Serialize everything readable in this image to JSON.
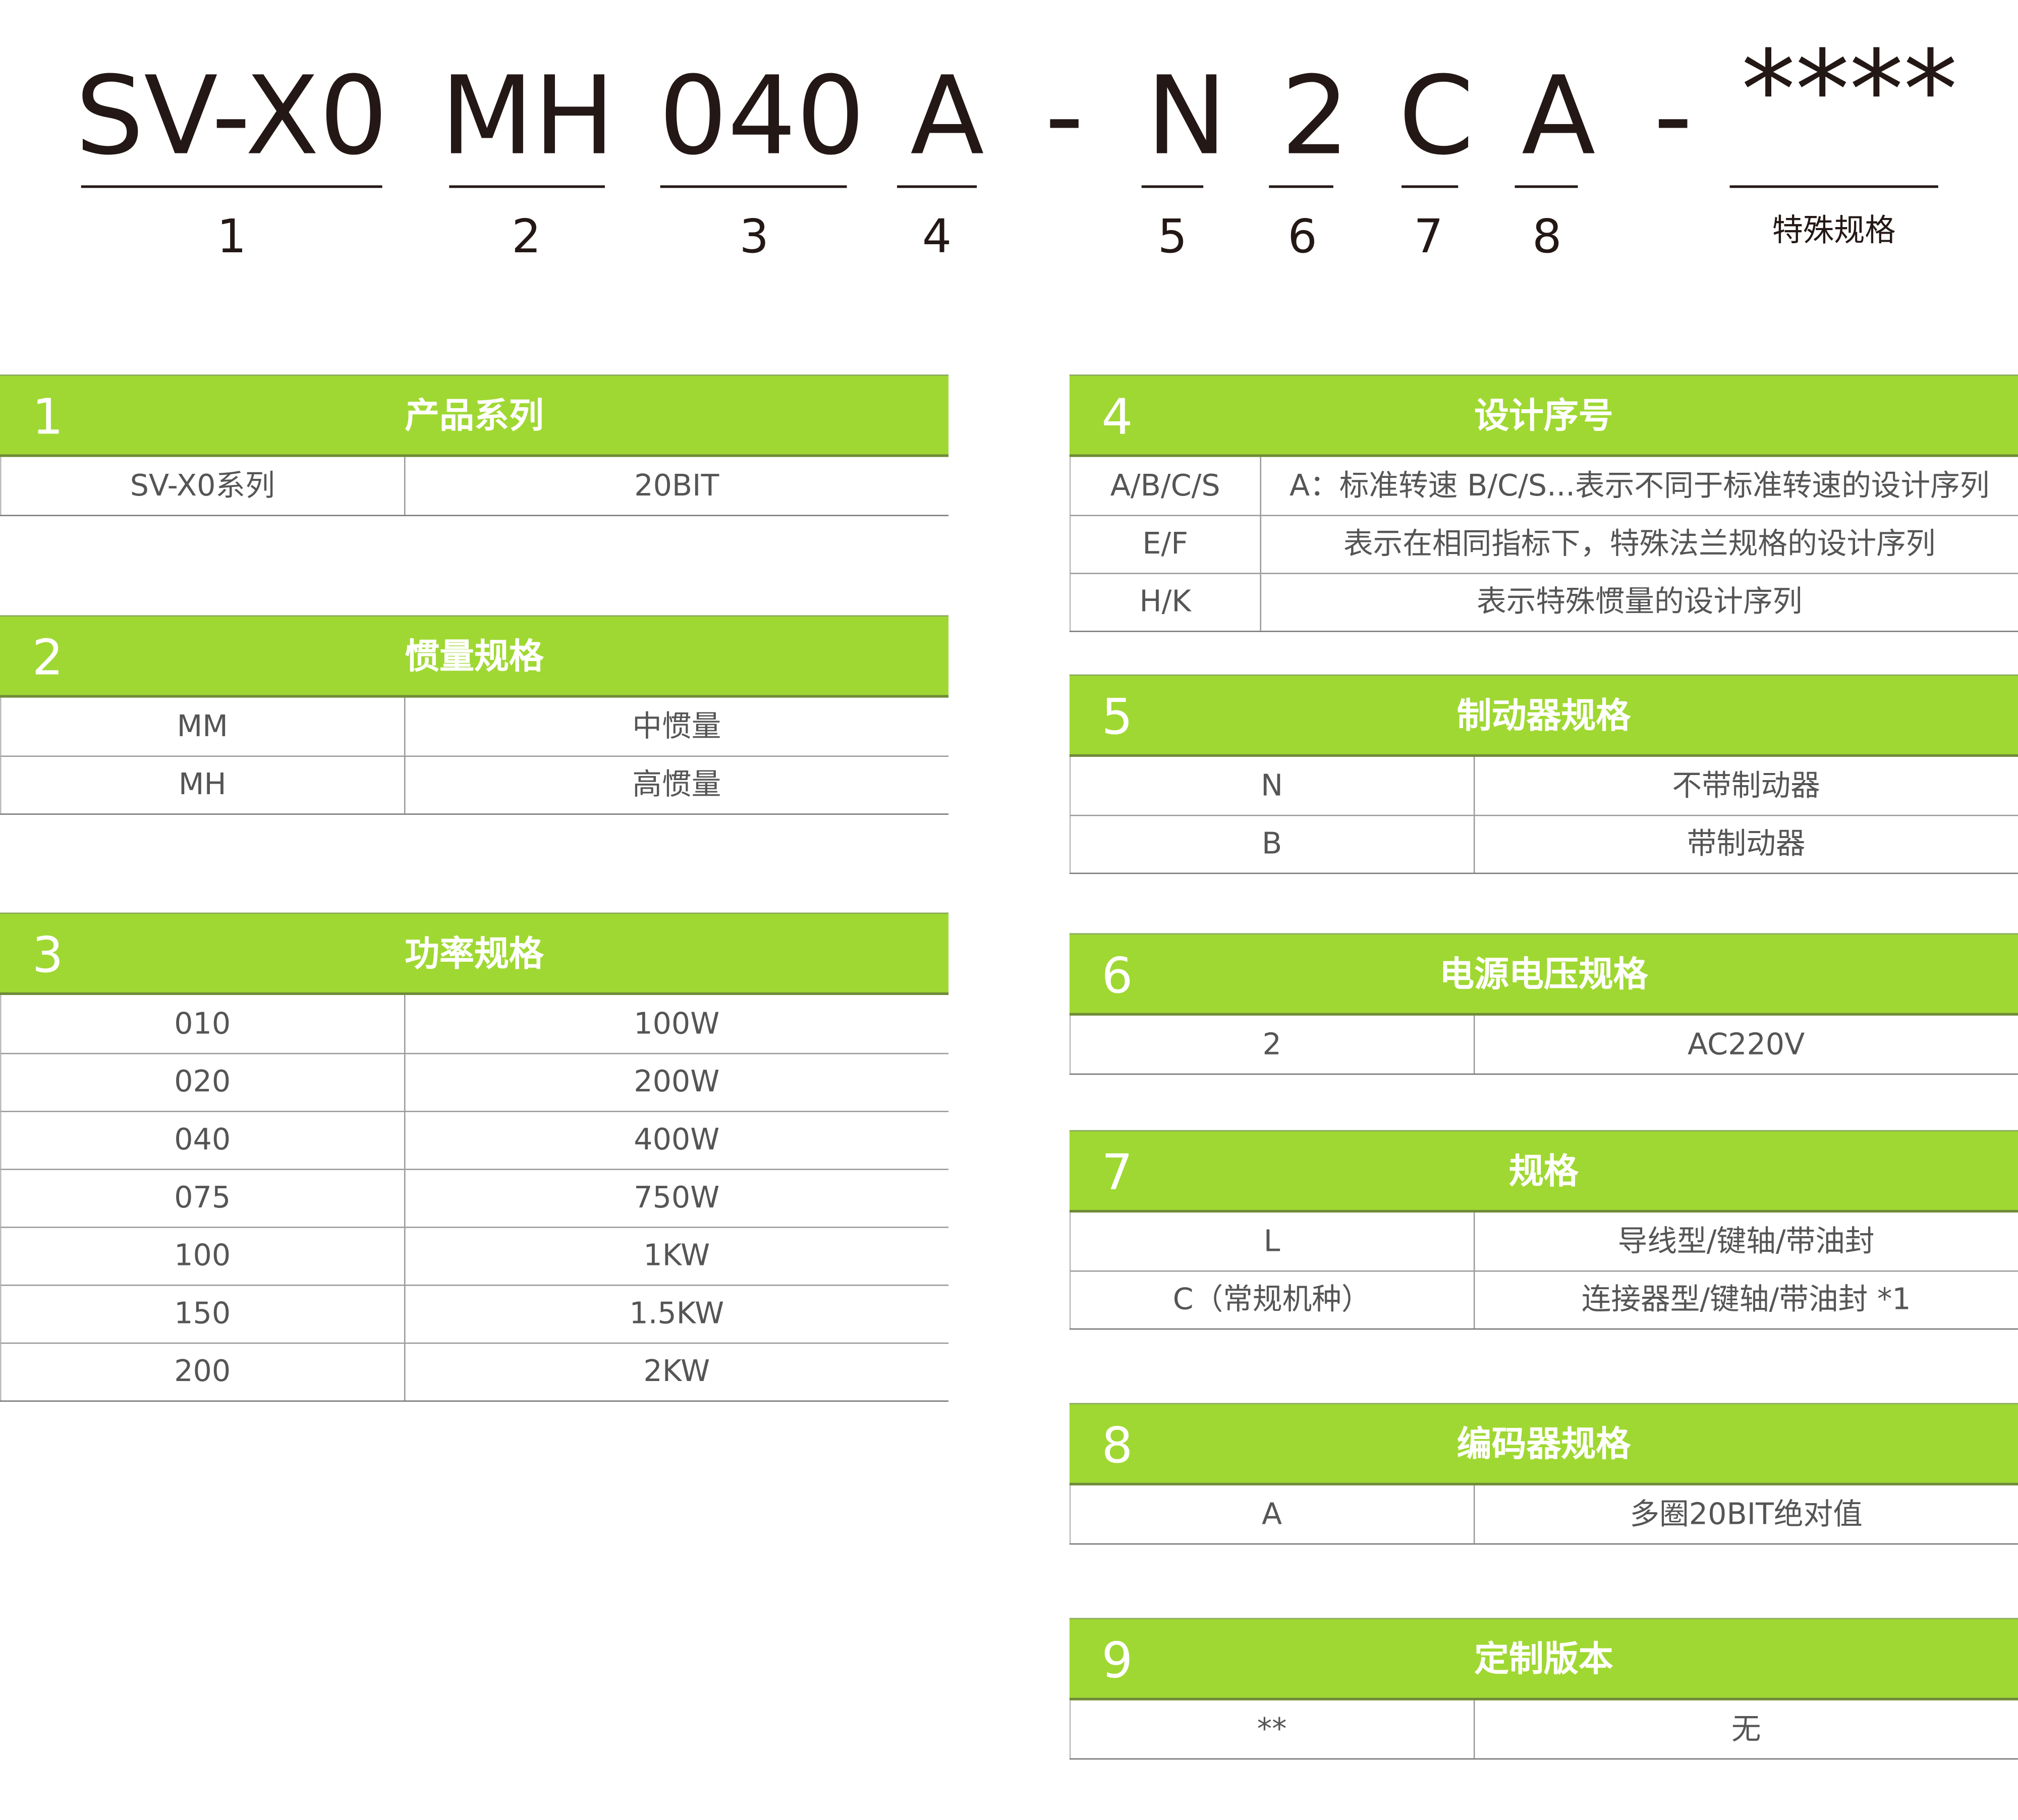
{
  "model_code": {
    "segments": [
      "SV-X0",
      "MH",
      "040",
      "A",
      "-",
      "N",
      "2",
      "C",
      "A",
      "-",
      "****"
    ],
    "labels": [
      "1",
      "2",
      "3",
      "4",
      "5",
      "6",
      "7",
      "8"
    ],
    "special_label": "特殊规格"
  },
  "colors": {
    "header_green": "#9fd832",
    "text": "#555555",
    "code_text": "#231815"
  },
  "tables": [
    {
      "num": "1",
      "title": "产品系列",
      "rows": [
        [
          "SV-X0系列",
          "20BIT"
        ]
      ]
    },
    {
      "num": "2",
      "title": "惯量规格",
      "rows": [
        [
          "MM",
          "中惯量"
        ],
        [
          "MH",
          "高惯量"
        ]
      ]
    },
    {
      "num": "3",
      "title": "功率规格",
      "rows": [
        [
          "010",
          "100W"
        ],
        [
          "020",
          "200W"
        ],
        [
          "040",
          "400W"
        ],
        [
          "075",
          "750W"
        ],
        [
          "100",
          "1KW"
        ],
        [
          "150",
          "1.5KW"
        ],
        [
          "200",
          "2KW"
        ]
      ]
    },
    {
      "num": "4",
      "title": "设计序号",
      "rows": [
        [
          "A/B/C/S",
          "A：标准转速  B/C/S...表示不同于标准转速的设计序列"
        ],
        [
          "E/F",
          "表示在相同指标下，特殊法兰规格的设计序列"
        ],
        [
          "H/K",
          "表示特殊惯量的设计序列"
        ]
      ]
    },
    {
      "num": "5",
      "title": "制动器规格",
      "rows": [
        [
          "N",
          "不带制动器"
        ],
        [
          "B",
          "带制动器"
        ]
      ]
    },
    {
      "num": "6",
      "title": "电源电压规格",
      "rows": [
        [
          "2",
          "AC220V"
        ]
      ]
    },
    {
      "num": "7",
      "title": "规格",
      "rows": [
        [
          "L",
          "导线型/键轴/带油封"
        ],
        [
          "C（常规机种）",
          "连接器型/键轴/带油封 *1"
        ]
      ]
    },
    {
      "num": "8",
      "title": "编码器规格",
      "rows": [
        [
          "A",
          "多圈20BIT绝对值"
        ]
      ]
    },
    {
      "num": "9",
      "title": "定制版本",
      "rows": [
        [
          "**",
          "无"
        ]
      ]
    }
  ]
}
